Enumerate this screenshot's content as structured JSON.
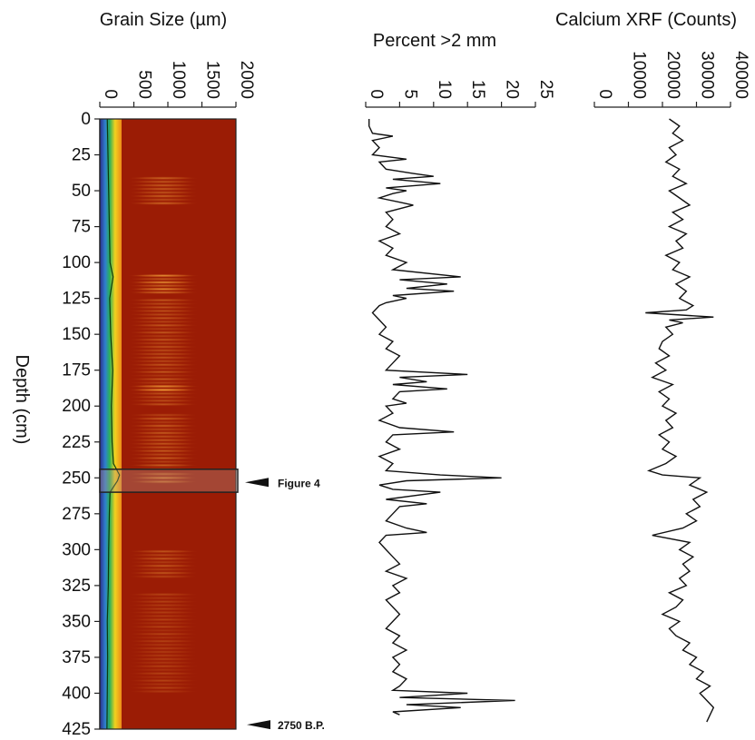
{
  "chart_data": [
    {
      "panel": "grain_size",
      "type": "heatmap",
      "title": "Grain Size (µm)",
      "x": {
        "label": "Grain Size (µm)",
        "range": [
          0,
          2000
        ],
        "ticks": [
          0,
          500,
          1000,
          1500,
          2000
        ]
      },
      "y": {
        "label": "Depth (cm)",
        "range": [
          0,
          425
        ],
        "inverted": true,
        "ticks": [
          0,
          25,
          50,
          75,
          100,
          125,
          150,
          175,
          200,
          225,
          250,
          275,
          300,
          325,
          350,
          375,
          400,
          425
        ]
      },
      "colors": {
        "background": "#9b1c05",
        "fringe": [
          "#2b2f8a",
          "#2f7fd0",
          "#2ab05a",
          "#f2d21e",
          "#ec8a18"
        ],
        "bright": "#f5a43a"
      },
      "bright_bands_depth_cm": [
        {
          "from": 40,
          "to": 60,
          "intensity": 0.55
        },
        {
          "from": 108,
          "to": 122,
          "intensity": 0.85
        },
        {
          "from": 125,
          "to": 200,
          "intensity": 0.45
        },
        {
          "from": 185,
          "to": 190,
          "intensity": 0.9
        },
        {
          "from": 205,
          "to": 245,
          "intensity": 0.5
        },
        {
          "from": 246,
          "to": 254,
          "intensity": 0.75
        },
        {
          "from": 300,
          "to": 320,
          "intensity": 0.45
        },
        {
          "from": 330,
          "to": 400,
          "intensity": 0.3
        }
      ],
      "median_curve": {
        "depth": [
          0,
          25,
          50,
          75,
          100,
          110,
          125,
          150,
          175,
          200,
          225,
          240,
          248,
          252,
          260,
          275,
          300,
          325,
          350,
          375,
          400,
          425
        ],
        "value": [
          110,
          120,
          130,
          140,
          150,
          195,
          145,
          160,
          190,
          170,
          180,
          200,
          290,
          260,
          150,
          140,
          130,
          125,
          110,
          115,
          110,
          105
        ]
      },
      "annotations": [
        {
          "label": "Figure 4",
          "depth_cm": 250,
          "box_depth": [
            244,
            260
          ]
        },
        {
          "label": "2750 B.P.",
          "depth_cm": 420
        }
      ]
    },
    {
      "panel": "percent_gt_2mm",
      "type": "line",
      "title": "Percent >2 mm",
      "x": {
        "range": [
          0,
          25
        ],
        "ticks": [
          0,
          5,
          10,
          15,
          20,
          25
        ]
      },
      "y": {
        "label": "Depth (cm)",
        "range": [
          0,
          425
        ],
        "inverted": true
      },
      "series": [
        {
          "depth": [
            0,
            5,
            10,
            12,
            15,
            20,
            25,
            28,
            30,
            35,
            38,
            40,
            42,
            45,
            48,
            50,
            52,
            55,
            58,
            60,
            65,
            70,
            75,
            80,
            85,
            90,
            95,
            100,
            105,
            110,
            112,
            115,
            118,
            120,
            123,
            125,
            128,
            130,
            135,
            140,
            145,
            150,
            155,
            160,
            165,
            170,
            175,
            178,
            180,
            183,
            185,
            188,
            190,
            195,
            198,
            200,
            205,
            210,
            215,
            218,
            220,
            225,
            230,
            235,
            240,
            245,
            248,
            250,
            252,
            255,
            258,
            260,
            265,
            268,
            270,
            275,
            280,
            285,
            288,
            290,
            295,
            300,
            305,
            310,
            315,
            320,
            325,
            330,
            335,
            340,
            345,
            350,
            355,
            360,
            365,
            370,
            375,
            380,
            385,
            390,
            395,
            398,
            400,
            403,
            405,
            408,
            410,
            413,
            415
          ],
          "value": [
            0.5,
            0.5,
            1,
            4,
            1,
            2,
            1,
            6,
            2,
            3,
            7,
            10,
            4,
            11,
            3,
            6,
            4,
            2,
            5,
            7,
            3,
            4,
            3,
            5,
            2,
            4,
            3,
            6,
            4,
            14,
            5,
            12,
            6,
            13,
            4,
            6,
            3,
            2,
            1,
            2,
            3,
            2,
            4,
            3,
            5,
            4,
            3,
            15,
            5,
            9,
            4,
            12,
            5,
            4,
            6,
            3,
            4,
            2,
            5,
            13,
            4,
            3,
            5,
            2,
            4,
            3,
            11,
            20,
            6,
            2,
            4,
            11,
            3,
            9,
            5,
            4,
            3,
            6,
            9,
            3,
            2,
            3,
            4,
            5,
            3,
            6,
            4,
            5,
            3,
            4,
            5,
            4,
            3,
            5,
            4,
            6,
            4,
            5,
            4,
            6,
            5,
            4,
            15,
            5,
            22,
            6,
            14,
            4,
            5
          ]
        }
      ]
    },
    {
      "panel": "calcium_xrf",
      "type": "line",
      "title": "Calcium XRF (Counts)",
      "x": {
        "range": [
          0,
          40000
        ],
        "ticks": [
          0,
          10000,
          20000,
          30000,
          40000
        ]
      },
      "y": {
        "label": "Depth (cm)",
        "range": [
          0,
          425
        ],
        "inverted": true
      },
      "series": [
        {
          "depth": [
            0,
            5,
            10,
            15,
            20,
            25,
            30,
            35,
            40,
            45,
            50,
            55,
            60,
            65,
            70,
            75,
            80,
            85,
            90,
            95,
            100,
            105,
            110,
            115,
            120,
            125,
            130,
            133,
            135,
            138,
            140,
            142,
            145,
            150,
            155,
            160,
            165,
            170,
            175,
            180,
            185,
            190,
            195,
            200,
            205,
            210,
            215,
            220,
            225,
            230,
            235,
            240,
            245,
            248,
            250,
            255,
            260,
            265,
            270,
            275,
            280,
            285,
            290,
            295,
            300,
            305,
            310,
            315,
            320,
            325,
            330,
            335,
            340,
            345,
            350,
            355,
            360,
            365,
            370,
            375,
            380,
            385,
            390,
            395,
            400,
            405,
            410,
            415,
            420
          ],
          "value": [
            22000,
            25000,
            23000,
            26000,
            22000,
            24000,
            21000,
            25000,
            23000,
            27000,
            22000,
            25000,
            28000,
            23000,
            26000,
            22000,
            27000,
            24000,
            26000,
            21000,
            25000,
            23000,
            28000,
            24000,
            27000,
            25000,
            29000,
            27000,
            15000,
            35000,
            22000,
            26000,
            21000,
            23000,
            20000,
            19000,
            22000,
            18000,
            21000,
            17000,
            23000,
            19000,
            22000,
            20000,
            24000,
            21000,
            23000,
            19000,
            22000,
            20000,
            24000,
            21000,
            16000,
            20000,
            31000,
            28000,
            33000,
            29000,
            31000,
            27000,
            30000,
            26000,
            17000,
            28000,
            25000,
            29000,
            26000,
            28000,
            25000,
            27000,
            22000,
            26000,
            24000,
            20000,
            25000,
            22000,
            24000,
            28000,
            26000,
            30000,
            28000,
            32000,
            30000,
            34000,
            31000,
            33000,
            35000,
            34000,
            33000
          ]
        }
      ]
    }
  ]
}
